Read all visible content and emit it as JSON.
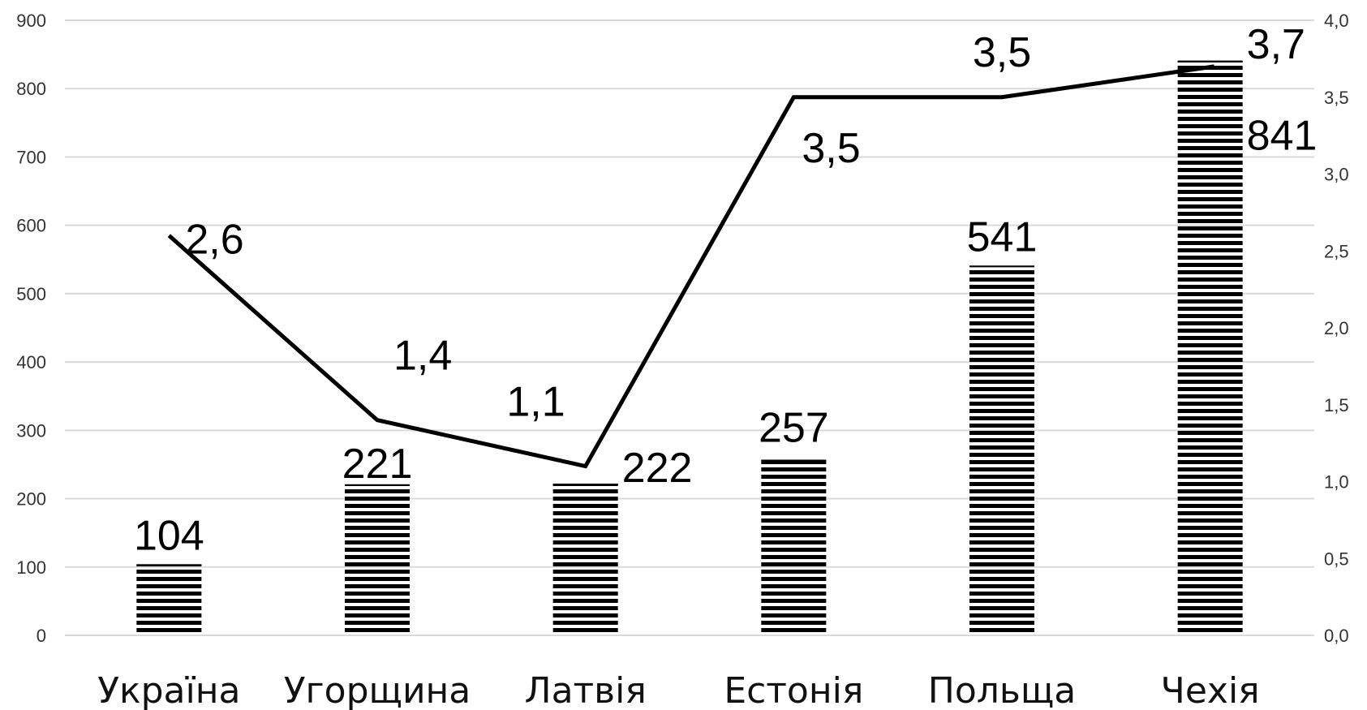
{
  "chart_data": {
    "type": "bar",
    "categories": [
      "Україна",
      "Угорщина",
      "Латвія",
      "Естонія",
      "Польща",
      "Чехія"
    ],
    "series": [
      {
        "type": "bar",
        "axis": "left",
        "values": [
          104,
          221,
          222,
          257,
          541,
          841
        ],
        "value_labels": [
          "104",
          "221",
          "222",
          "257",
          "541",
          "841"
        ],
        "fill_pattern": "horizontal-stripes",
        "color": "#000000"
      },
      {
        "type": "line",
        "axis": "right",
        "values": [
          2.6,
          1.4,
          1.1,
          3.5,
          3.5,
          3.7
        ],
        "value_labels": [
          "2,6",
          "1,4",
          "1,1",
          "3,5",
          "3,5",
          "3,7"
        ],
        "color": "#000000"
      }
    ],
    "y_left": {
      "ylim": [
        0,
        900
      ],
      "ticks": [
        "0",
        "100",
        "200",
        "300",
        "400",
        "500",
        "600",
        "700",
        "800",
        "900"
      ]
    },
    "y_right": {
      "ylim": [
        0,
        4.0
      ],
      "ticks": [
        "0,0",
        "0,5",
        "1,0",
        "1,5",
        "2,0",
        "2,5",
        "3,0",
        "3,5",
        "4,0"
      ]
    },
    "grid": true,
    "legend": "none",
    "title": "",
    "xlabel": "",
    "ylabel": ""
  }
}
